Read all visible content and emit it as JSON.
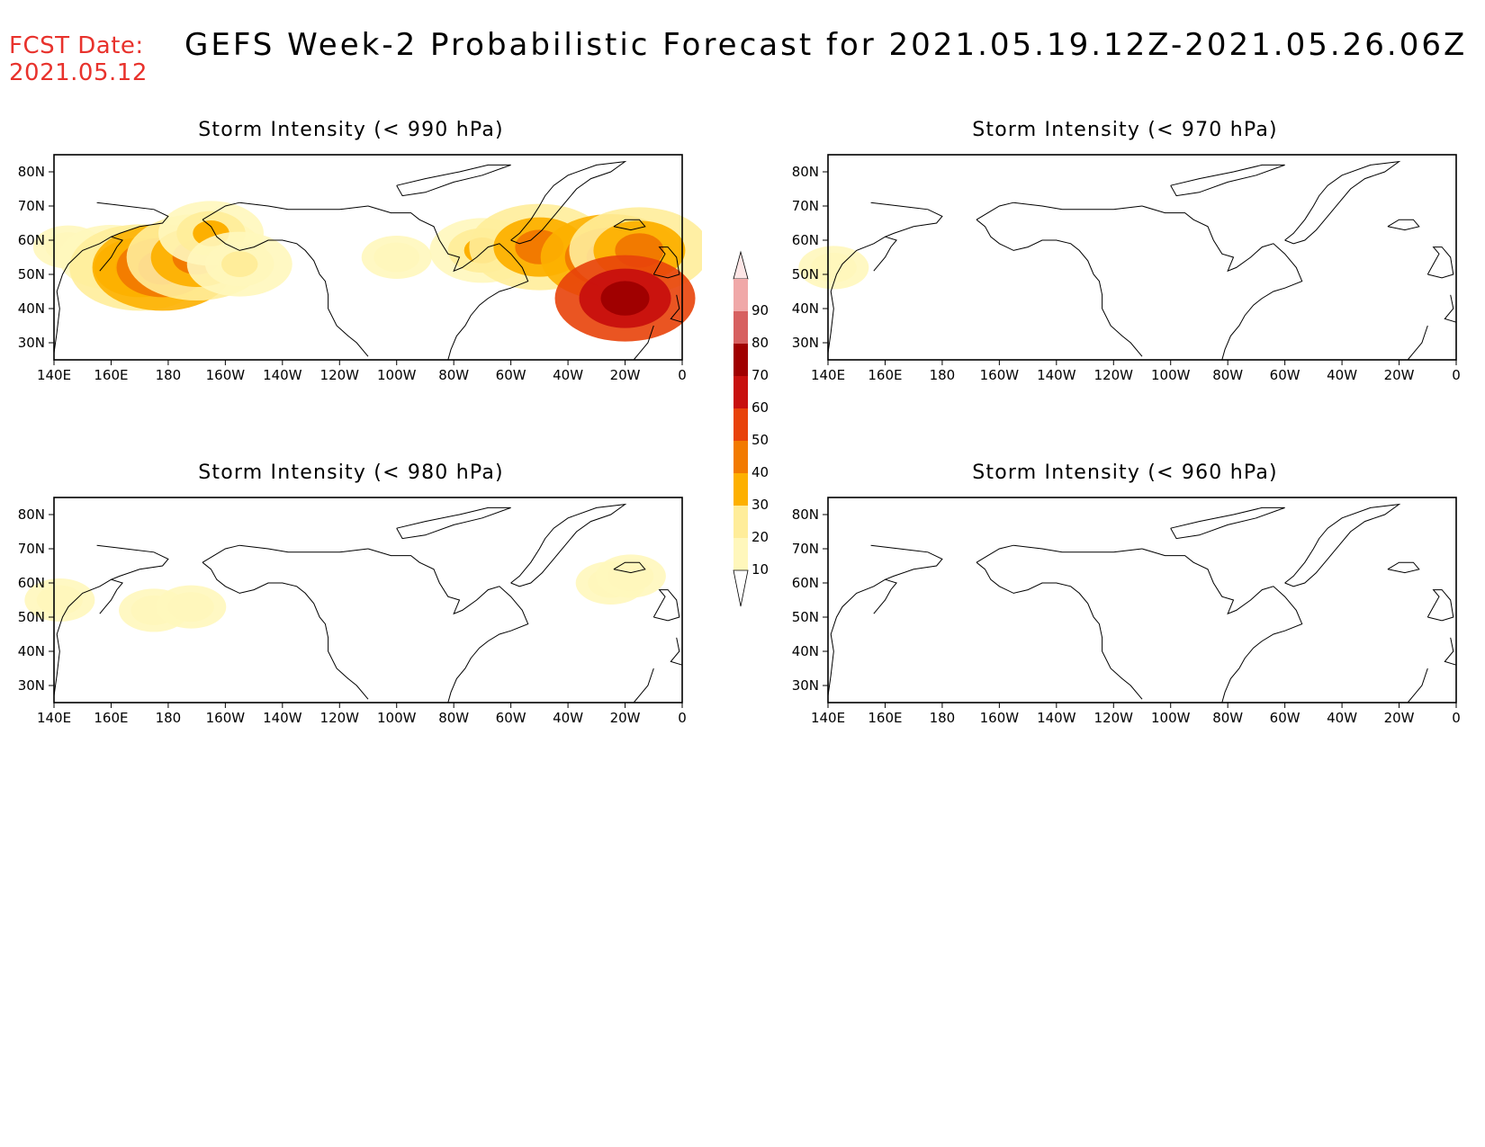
{
  "fcst_date_label": "FCST Date:",
  "fcst_date_value": "2021.05.12",
  "main_title": "GEFS Week-2 Probabilistic Forecast for 2021.05.19.12Z-2021.05.26.06Z",
  "panels": [
    {
      "title": "Storm Intensity (< 990 hPa)",
      "has_data": true
    },
    {
      "title": "Storm Intensity (< 970 hPa)",
      "has_data": true
    },
    {
      "title": "Storm Intensity (< 980 hPa)",
      "has_data": true
    },
    {
      "title": "Storm Intensity (< 960 hPa)",
      "has_data": false
    }
  ],
  "lon_ticks": [
    "140E",
    "160E",
    "180",
    "160W",
    "140W",
    "120W",
    "100W",
    "80W",
    "60W",
    "40W",
    "20W",
    "0"
  ],
  "lat_ticks": [
    "80N",
    "70N",
    "60N",
    "50N",
    "40N",
    "30N"
  ],
  "colorbar": {
    "levels": [
      "10",
      "20",
      "30",
      "40",
      "50",
      "60",
      "70",
      "80",
      "90"
    ],
    "colors": [
      "#fff7bc",
      "#ffed9a",
      "#fdb000",
      "#f27a00",
      "#e8420a",
      "#c8100e",
      "#a00000",
      "#d76060",
      "#f0a8a8",
      "#fde6e6"
    ]
  },
  "chart_data": [
    {
      "type": "heatmap",
      "title": "Storm Intensity (< 990 hPa)",
      "x_axis": "longitude",
      "y_axis": "latitude",
      "xlim": [
        "140E",
        "0"
      ],
      "ylim": [
        "25N",
        "85N"
      ],
      "legend": "vertical colorbar between panels",
      "regions": [
        {
          "lon": 145,
          "lat": 58,
          "prob": 15
        },
        {
          "lon": 160,
          "lat": 55,
          "prob": 25
        },
        {
          "lon": 170,
          "lat": 52,
          "prob": 45
        },
        {
          "lon": 178,
          "lat": 52,
          "prob": 50
        },
        {
          "lon": 190,
          "lat": 55,
          "prob": 45
        },
        {
          "lon": 195,
          "lat": 62,
          "prob": 35
        },
        {
          "lon": 205,
          "lat": 53,
          "prob": 20
        },
        {
          "lon": 260,
          "lat": 55,
          "prob": 15
        },
        {
          "lon": 290,
          "lat": 57,
          "prob": 30
        },
        {
          "lon": 310,
          "lat": 58,
          "prob": 40
        },
        {
          "lon": 335,
          "lat": 55,
          "prob": 50
        },
        {
          "lon": 345,
          "lat": 57,
          "prob": 45
        },
        {
          "lon": 340,
          "lat": 43,
          "prob": 70
        }
      ]
    },
    {
      "type": "heatmap",
      "title": "Storm Intensity (< 970 hPa)",
      "regions": [
        {
          "lon": 142,
          "lat": 52,
          "prob": 10
        }
      ]
    },
    {
      "type": "heatmap",
      "title": "Storm Intensity (< 980 hPa)",
      "regions": [
        {
          "lon": 142,
          "lat": 55,
          "prob": 12
        },
        {
          "lon": 175,
          "lat": 52,
          "prob": 15
        },
        {
          "lon": 188,
          "lat": 53,
          "prob": 15
        },
        {
          "lon": 335,
          "lat": 60,
          "prob": 15
        },
        {
          "lon": 342,
          "lat": 62,
          "prob": 15
        }
      ]
    },
    {
      "type": "heatmap",
      "title": "Storm Intensity (< 960 hPa)",
      "regions": []
    }
  ]
}
